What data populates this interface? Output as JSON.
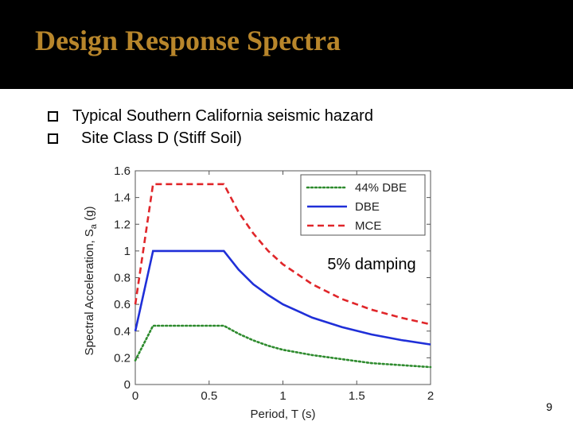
{
  "slide": {
    "title": "Design Response Spectra",
    "bullets": [
      "Typical Southern California seismic hazard",
      "Site Class D (Stiff Soil)"
    ],
    "page_number": "9"
  },
  "colors": {
    "title_text": "#b8862b",
    "title_bar": "#000000"
  },
  "chart_data": {
    "type": "line",
    "xlabel": "Period, T (s)",
    "ylabel_main": "Spectral Acceleration, S",
    "ylabel_sub": "a",
    "ylabel_unit": " (g)",
    "xlim": [
      0,
      2
    ],
    "ylim": [
      0,
      1.6
    ],
    "xticks": [
      0,
      0.5,
      1,
      1.5,
      2
    ],
    "xtick_labels": [
      "0",
      "0.5",
      "1",
      "1.5",
      "2"
    ],
    "yticks": [
      0,
      0.2,
      0.4,
      0.6,
      0.8,
      1,
      1.2,
      1.4,
      1.6
    ],
    "ytick_labels": [
      "0",
      "0.2",
      "0.4",
      "0.6",
      "0.8",
      "1",
      "1.2",
      "1.4",
      "1.6"
    ],
    "grid": false,
    "legend_position": "top-right",
    "annotation": "5% damping",
    "series": [
      {
        "name": "44% DBE",
        "color": "#2e8b2e",
        "dash": "dotted",
        "points": [
          [
            0,
            0.18
          ],
          [
            0.12,
            0.44
          ],
          [
            0.6,
            0.44
          ],
          [
            0.7,
            0.38
          ],
          [
            0.8,
            0.33
          ],
          [
            0.9,
            0.29
          ],
          [
            1.0,
            0.26
          ],
          [
            1.2,
            0.22
          ],
          [
            1.4,
            0.19
          ],
          [
            1.6,
            0.16
          ],
          [
            1.8,
            0.145
          ],
          [
            2.0,
            0.13
          ]
        ]
      },
      {
        "name": "DBE",
        "color": "#1f2fd8",
        "dash": "solid",
        "points": [
          [
            0,
            0.4
          ],
          [
            0.12,
            1.0
          ],
          [
            0.6,
            1.0
          ],
          [
            0.7,
            0.86
          ],
          [
            0.8,
            0.75
          ],
          [
            0.9,
            0.67
          ],
          [
            1.0,
            0.6
          ],
          [
            1.2,
            0.5
          ],
          [
            1.4,
            0.43
          ],
          [
            1.6,
            0.375
          ],
          [
            1.8,
            0.333
          ],
          [
            2.0,
            0.3
          ]
        ]
      },
      {
        "name": "MCE",
        "color": "#e0262a",
        "dash": "dashed",
        "points": [
          [
            0,
            0.6
          ],
          [
            0.12,
            1.5
          ],
          [
            0.6,
            1.5
          ],
          [
            0.7,
            1.29
          ],
          [
            0.8,
            1.13
          ],
          [
            0.9,
            1.0
          ],
          [
            1.0,
            0.9
          ],
          [
            1.2,
            0.75
          ],
          [
            1.4,
            0.64
          ],
          [
            1.6,
            0.56
          ],
          [
            1.8,
            0.5
          ],
          [
            2.0,
            0.45
          ]
        ]
      }
    ]
  }
}
